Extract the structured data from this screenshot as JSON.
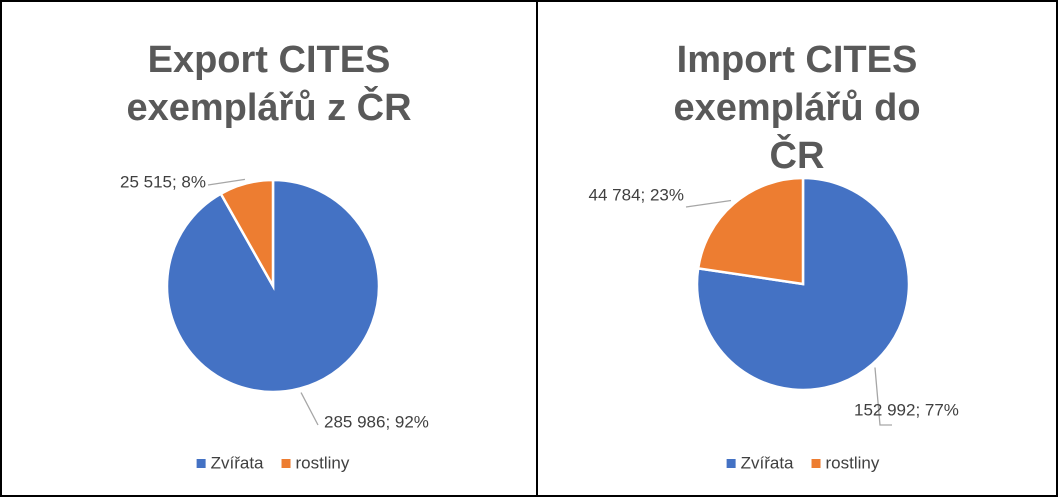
{
  "chart_data": [
    {
      "type": "pie",
      "title": "Export CITES exemplářů z ČR",
      "categories": [
        "Zvířata",
        "rostliny"
      ],
      "values": [
        285986,
        25515
      ],
      "value_labels": [
        "285 986; 92%",
        "25 515; 8%"
      ],
      "colors": [
        "#4472c4",
        "#ed7d31"
      ],
      "legend": "bottom"
    },
    {
      "type": "pie",
      "title": "Import CITES exemplářů do ČR",
      "categories": [
        "Zvířata",
        "rostliny"
      ],
      "values": [
        152992,
        44784
      ],
      "value_labels": [
        "152 992; 77%",
        "44 784; 23%"
      ],
      "colors": [
        "#4472c4",
        "#ed7d31"
      ],
      "legend": "bottom"
    }
  ]
}
